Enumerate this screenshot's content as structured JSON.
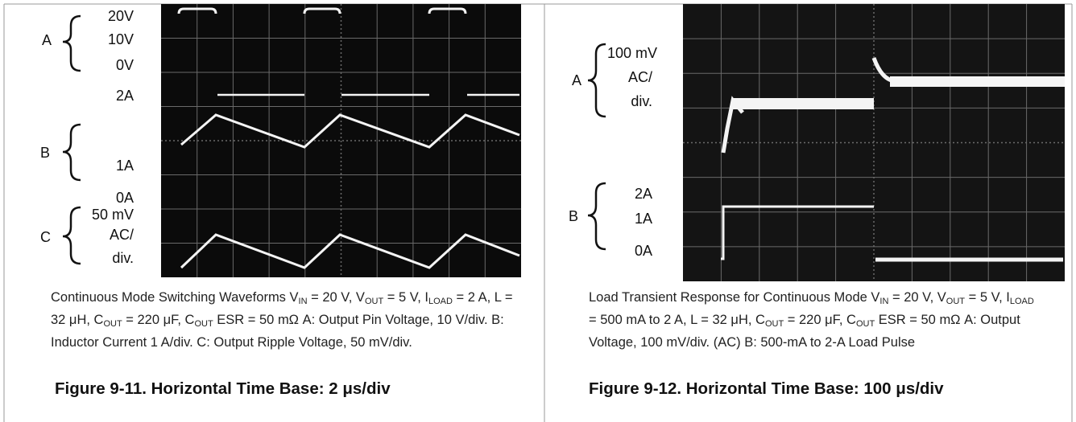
{
  "figures": [
    {
      "channels": [
        "A",
        "B",
        "C"
      ],
      "scale_labels": [
        "20V",
        "10V",
        "0V",
        "2A",
        "1A",
        "0A",
        "50 mV",
        "AC/",
        "div."
      ],
      "caption": [
        {
          "text": "Continuous Mode Switching Waveforms V",
          "sub": "IN"
        },
        {
          "text": " = 20 V, V",
          "sub": "OUT"
        },
        {
          "text": " = 5 V, I",
          "sub": "LOAD"
        },
        {
          "text": " = 2 A, L = 32 μH, C",
          "sub": "OUT"
        },
        {
          "text": " = 220 μF, C",
          "sub": "OUT"
        },
        {
          "text": " ESR = 50 mΩ A: Output Pin Voltage, 10 V/div. B: Inductor Current 1 A/div. C: Output Ripple Voltage, 50 mV/div."
        }
      ],
      "title": "Figure 9-11. Horizontal Time Base: 2 μs/div"
    },
    {
      "channels": [
        "A",
        "B"
      ],
      "scale_labels": [
        "100 mV",
        "AC/",
        "div.",
        "2A",
        "1A",
        "0A"
      ],
      "caption": [
        {
          "text": "Load Transient Response for Continuous Mode V",
          "sub": "IN"
        },
        {
          "text": " = 20 V, V",
          "sub": "OUT"
        },
        {
          "text": " = 5 V, I",
          "sub": "LOAD"
        },
        {
          "text": " = 500 mA to 2 A, L = 32 μH, C",
          "sub": "OUT"
        },
        {
          "text": " = 220 μF, C",
          "sub": "OUT"
        },
        {
          "text": " ESR = 50 mΩ A: Output Voltage, 100 mV/div. (AC) B: 500-mA to 2-A Load Pulse"
        }
      ],
      "title": "Figure 9-12. Horizontal Time Base: 100 μs/div"
    }
  ]
}
